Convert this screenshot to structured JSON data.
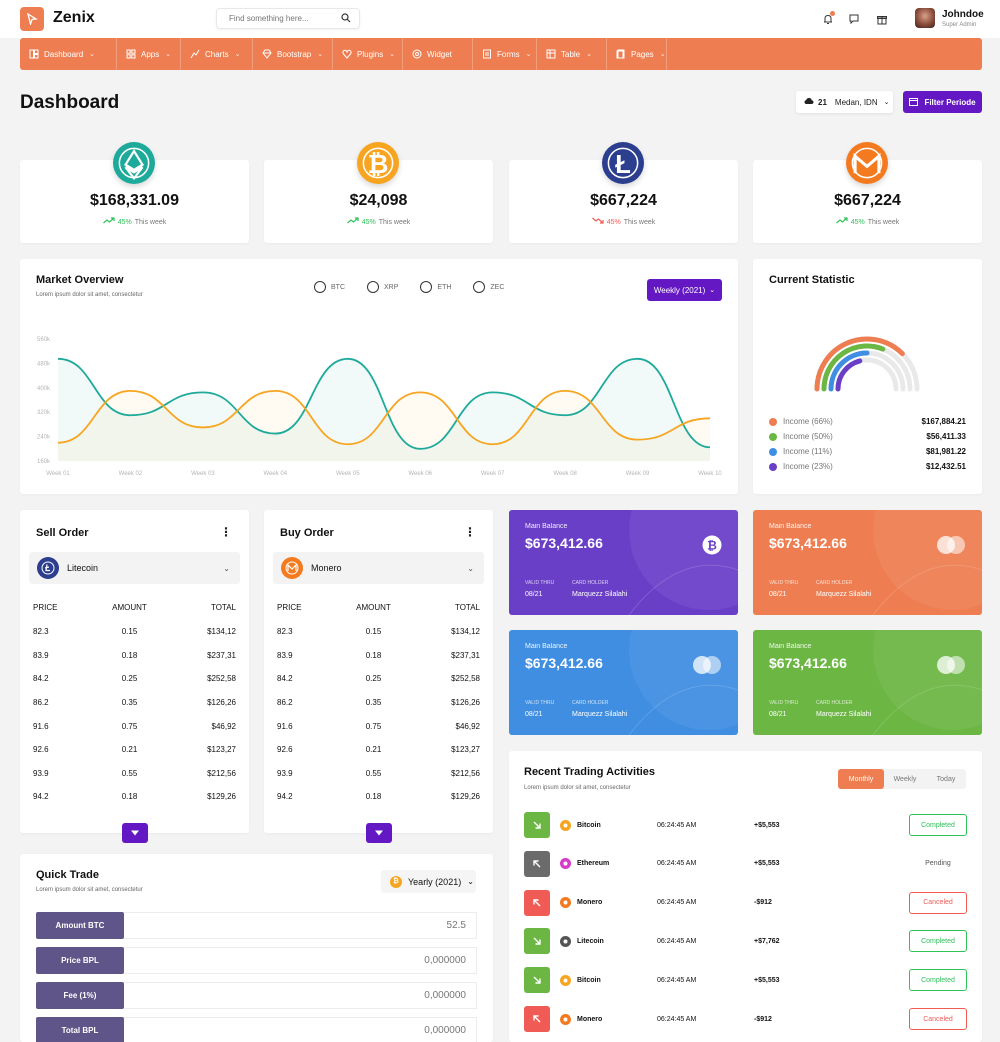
{
  "app": {
    "title": "Zenix",
    "search_placeholder": "Find something here...",
    "user_name": "Johndoe",
    "user_role": "Super Admin",
    "brand_color": "#ee7e51",
    "accent_color": "#6418c3"
  },
  "nav": [
    {
      "label": "Dashboard",
      "icon": "dashboard-icon"
    },
    {
      "label": "Apps",
      "icon": "apps-icon"
    },
    {
      "label": "Charts",
      "icon": "charts-icon"
    },
    {
      "label": "Bootstrap",
      "icon": "diamond-icon"
    },
    {
      "label": "Plugins",
      "icon": "heart-icon"
    },
    {
      "label": "Widget",
      "icon": "widget-icon"
    },
    {
      "label": "Forms",
      "icon": "forms-icon"
    },
    {
      "label": "Table",
      "icon": "table-icon"
    },
    {
      "label": "Pages",
      "icon": "pages-icon"
    }
  ],
  "page": {
    "title": "Dashboard",
    "weather_temp": "21",
    "weather_location": "Medan, IDN",
    "filter_label": "Filter Periode"
  },
  "coins": [
    {
      "value": "$168,331.09",
      "pct": "45%",
      "period": "This week",
      "trend": "up",
      "icon": "ethereum-icon",
      "color": "#1eaa9a"
    },
    {
      "value": "$24,098",
      "pct": "45%",
      "period": "This week",
      "trend": "up",
      "icon": "bitcoin-icon",
      "color": "#f7a521"
    },
    {
      "value": "$667,224",
      "pct": "45%",
      "period": "This week",
      "trend": "down",
      "icon": "litecoin-icon",
      "color": "#2c3e8e"
    },
    {
      "value": "$667,224",
      "pct": "45%",
      "period": "This week",
      "trend": "up",
      "icon": "monero-icon",
      "color": "#f47a1f"
    }
  ],
  "market": {
    "title": "Market Overview",
    "subtitle": "Lorem ipsum dolor sit amet, consectetur",
    "legend": [
      "BTC",
      "XRP",
      "ETH",
      "ZEC"
    ],
    "period_btn": "Weekly (2021)"
  },
  "chart_data": {
    "type": "area",
    "x": [
      "Week 01",
      "Week 02",
      "Week 03",
      "Week 04",
      "Week 05",
      "Week 06",
      "Week 07",
      "Week 08",
      "Week 09",
      "Week 10"
    ],
    "y_ticks": [
      "160k",
      "240k",
      "320k",
      "400k",
      "480k",
      "560k"
    ],
    "ylim": [
      160,
      560
    ],
    "series": [
      {
        "color": "#1eaa9a",
        "values": [
          495,
          310,
          385,
          250,
          495,
          200,
          385,
          310,
          495,
          205
        ]
      },
      {
        "color": "#f7a521",
        "values": [
          220,
          390,
          270,
          390,
          215,
          385,
          215,
          390,
          230,
          300
        ]
      }
    ]
  },
  "stat": {
    "title": "Current Statistic",
    "items": [
      {
        "label": "Income (66%)",
        "value": "$167,884.21",
        "color": "#ee7e51",
        "fraction": 0.66
      },
      {
        "label": "Income (50%)",
        "value": "$56,411.33",
        "color": "#6cb644",
        "fraction": 0.5
      },
      {
        "label": "Income (11%)",
        "value": "$81,981.22",
        "color": "#3f8ee2",
        "fraction": 0.11
      },
      {
        "label": "Income (23%)",
        "value": "$12,432.51",
        "color": "#6a3fc8",
        "fraction": 0.23
      }
    ]
  },
  "sell": {
    "title": "Sell Order",
    "coin": "Litecoin",
    "headers": [
      "PRICE",
      "AMOUNT",
      "TOTAL"
    ],
    "rows": [
      [
        "82.3",
        "0.15",
        "$134,12"
      ],
      [
        "83.9",
        "0.18",
        "$237,31"
      ],
      [
        "84.2",
        "0.25",
        "$252,58"
      ],
      [
        "86.2",
        "0.35",
        "$126,26"
      ],
      [
        "91.6",
        "0.75",
        "$46,92"
      ],
      [
        "92.6",
        "0.21",
        "$123,27"
      ],
      [
        "93.9",
        "0.55",
        "$212,56"
      ],
      [
        "94.2",
        "0.18",
        "$129,26"
      ]
    ]
  },
  "buy": {
    "title": "Buy Order",
    "coin": "Monero",
    "headers": [
      "PRICE",
      "AMOUNT",
      "TOTAL"
    ],
    "rows": [
      [
        "82.3",
        "0.15",
        "$134,12"
      ],
      [
        "83.9",
        "0.18",
        "$237,31"
      ],
      [
        "84.2",
        "0.25",
        "$252,58"
      ],
      [
        "86.2",
        "0.35",
        "$126,26"
      ],
      [
        "91.6",
        "0.75",
        "$46,92"
      ],
      [
        "92.6",
        "0.21",
        "$123,27"
      ],
      [
        "93.9",
        "0.55",
        "$212,56"
      ],
      [
        "94.2",
        "0.18",
        "$129,26"
      ]
    ]
  },
  "balances": [
    {
      "label": "Main Balance",
      "value": "$673,412.66",
      "valid_label": "VALID THRU",
      "valid": "08/21",
      "holder_label": "CARD HOLDER",
      "holder": "Marquezz Silalahi",
      "color": "#6a3fc8"
    },
    {
      "label": "Main Balance",
      "value": "$673,412.66",
      "valid_label": "VALID THRU",
      "valid": "08/21",
      "holder_label": "CARD HOLDER",
      "holder": "Marquezz Silalahi",
      "color": "#ee7e51"
    },
    {
      "label": "Main Balance",
      "value": "$673,412.66",
      "valid_label": "VALID THRU",
      "valid": "08/21",
      "holder_label": "CARD HOLDER",
      "holder": "Marquezz Silalahi",
      "color": "#3f8ee2"
    },
    {
      "label": "Main Balance",
      "value": "$673,412.66",
      "valid_label": "VALID THRU",
      "valid": "08/21",
      "holder_label": "CARD HOLDER",
      "holder": "Marquezz Silalahi",
      "color": "#6cb644"
    }
  ],
  "trading": {
    "title": "Recent Trading Activities",
    "subtitle": "Lorem ipsum dolor sit amet, consectetur",
    "tabs": [
      "Monthly",
      "Weekly",
      "Today"
    ],
    "rows": [
      {
        "coin": "Bitcoin",
        "time": "06:24:45 AM",
        "amount": "+$5,553",
        "status": "Completed",
        "dir": "down-right",
        "color": "#6cb644",
        "coin_color": "#f7a521"
      },
      {
        "coin": "Ethereum",
        "time": "06:24:45 AM",
        "amount": "+$5,553",
        "status": "Pending",
        "dir": "up-left",
        "color": "#6b6b6b",
        "coin_color": "#d63cc8"
      },
      {
        "coin": "Monero",
        "time": "06:24:45 AM",
        "amount": "-$912",
        "status": "Canceled",
        "dir": "up-left",
        "color": "#f05c55",
        "coin_color": "#f47a1f"
      },
      {
        "coin": "Litecoin",
        "time": "06:24:45 AM",
        "amount": "+$7,762",
        "status": "Completed",
        "dir": "down-right",
        "color": "#6cb644",
        "coin_color": "#555555"
      },
      {
        "coin": "Bitcoin",
        "time": "06:24:45 AM",
        "amount": "+$5,553",
        "status": "Completed",
        "dir": "down-right",
        "color": "#6cb644",
        "coin_color": "#f7a521"
      },
      {
        "coin": "Monero",
        "time": "06:24:45 AM",
        "amount": "-$912",
        "status": "Canceled",
        "dir": "up-left",
        "color": "#f05c55",
        "coin_color": "#f47a1f"
      }
    ]
  },
  "quick": {
    "title": "Quick Trade",
    "subtitle": "Lorem ipsum dolor sit amet, consectetur",
    "period_btn": "Yearly (2021)",
    "fields": [
      {
        "label": "Amount BTC",
        "value": "52.5"
      },
      {
        "label": "Price BPL",
        "value": "0,000000"
      },
      {
        "label": "Fee (1%)",
        "value": "0,000000"
      },
      {
        "label": "Total BPL",
        "value": "0,000000"
      }
    ]
  }
}
